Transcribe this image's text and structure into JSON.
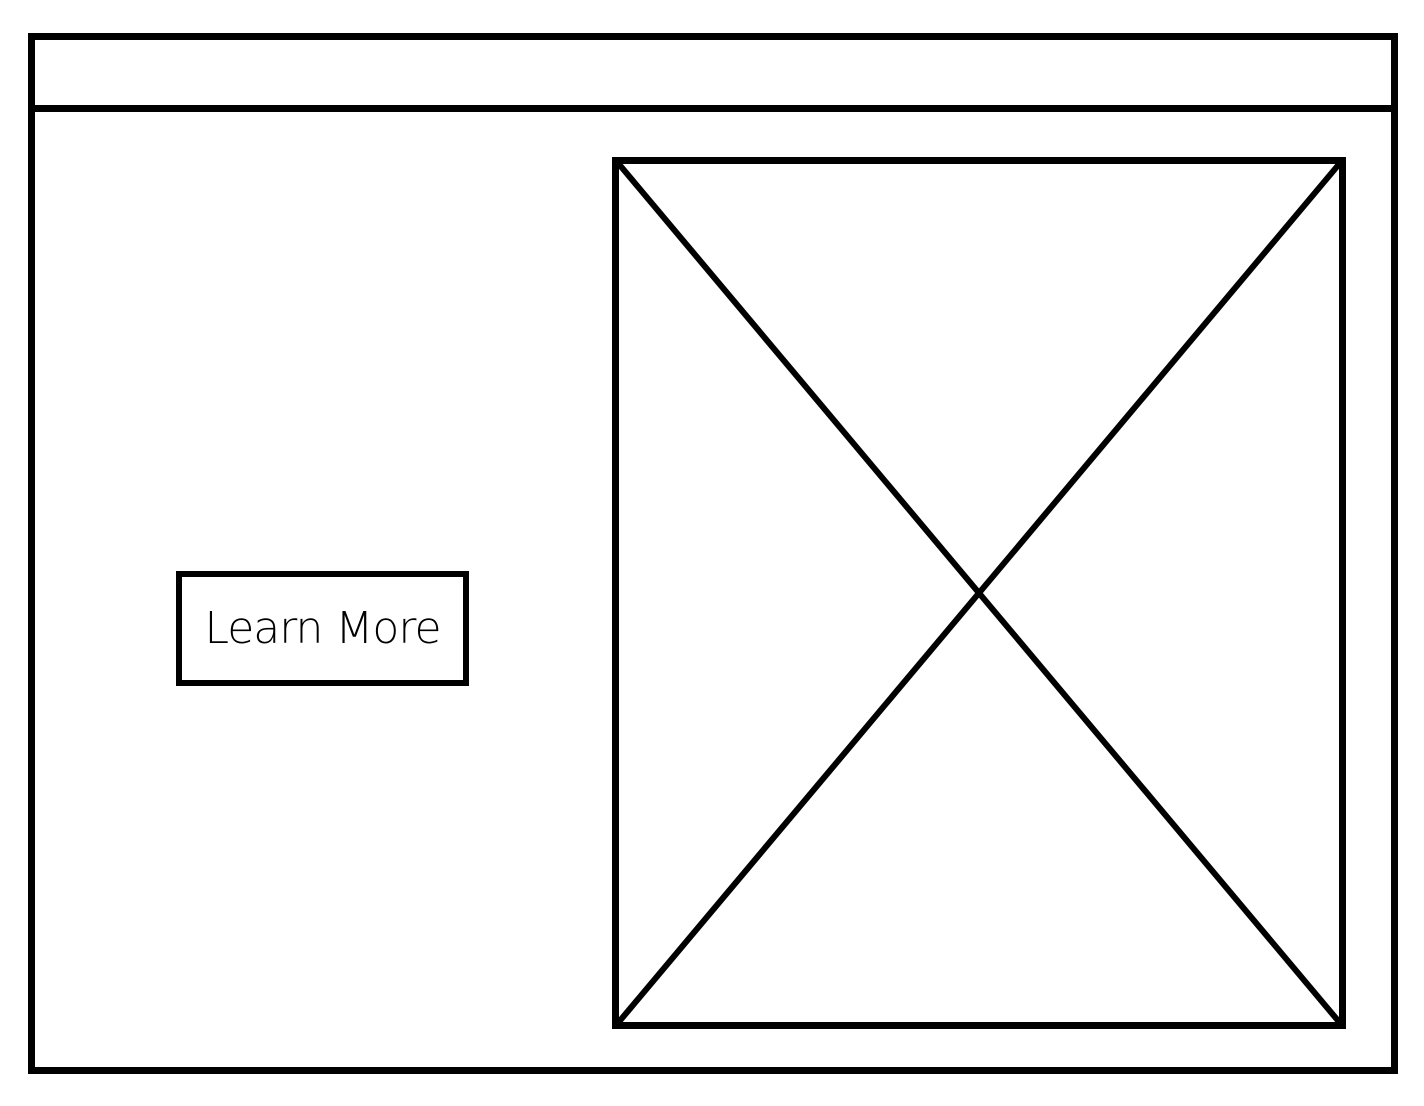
{
  "main": {
    "cta": {
      "label": "Learn More"
    },
    "image_placeholder": {
      "icon": "image-placeholder-cross-icon"
    }
  },
  "colors": {
    "stroke": "#000000",
    "background": "#ffffff"
  }
}
